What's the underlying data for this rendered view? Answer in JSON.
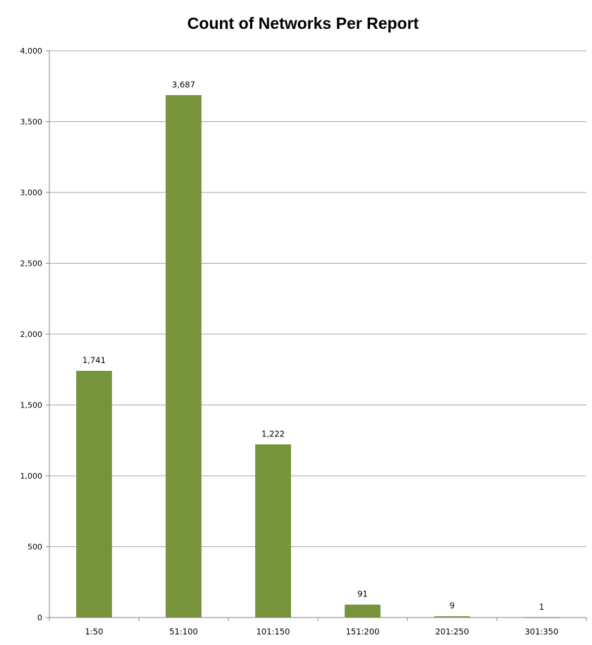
{
  "chart_data": {
    "type": "bar",
    "title": "Count of Networks Per Report",
    "xlabel": "",
    "ylabel": "",
    "categories": [
      "1:50",
      "51:100",
      "101:150",
      "151:200",
      "201:250",
      "301:350"
    ],
    "values": [
      1741,
      3687,
      1222,
      91,
      9,
      1
    ],
    "data_labels": [
      "1,741",
      "3,687",
      "1,222",
      "91",
      "9",
      "1"
    ],
    "ylim": [
      0,
      4000
    ],
    "yticks": [
      0,
      500,
      1000,
      1500,
      2000,
      2500,
      3000,
      3500,
      4000
    ],
    "ytick_labels": [
      "0",
      "500",
      "1,000",
      "1,500",
      "2,000",
      "2,500",
      "3,000",
      "3,500",
      "4,000"
    ],
    "grid": true,
    "legend": "none",
    "bar_color": "#77933c",
    "grid_color": "#a6a6a6"
  }
}
